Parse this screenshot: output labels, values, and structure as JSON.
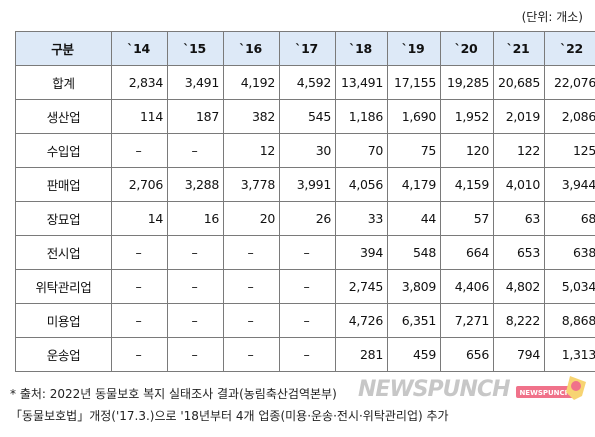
{
  "unit_label": "(단위: 개소)",
  "table": {
    "header": [
      "구분",
      "`14",
      "`15",
      "`16",
      "`17",
      "`18",
      "`19",
      "`20",
      "`21",
      "`22"
    ],
    "rows": [
      {
        "label": "합계",
        "cells": [
          "2,834",
          "3,491",
          "4,192",
          "4,592",
          "13,491",
          "17,155",
          "19,285",
          "20,685",
          "22,076"
        ]
      },
      {
        "label": "생산업",
        "cells": [
          "114",
          "187",
          "382",
          "545",
          "1,186",
          "1,690",
          "1,952",
          "2,019",
          "2,086"
        ]
      },
      {
        "label": "수입업",
        "cells": [
          "–",
          "–",
          "12",
          "30",
          "70",
          "75",
          "120",
          "122",
          "125"
        ]
      },
      {
        "label": "판매업",
        "cells": [
          "2,706",
          "3,288",
          "3,778",
          "3,991",
          "4,056",
          "4,179",
          "4,159",
          "4,010",
          "3,944"
        ]
      },
      {
        "label": "장묘업",
        "cells": [
          "14",
          "16",
          "20",
          "26",
          "33",
          "44",
          "57",
          "63",
          "68"
        ]
      },
      {
        "label": "전시업",
        "cells": [
          "–",
          "–",
          "–",
          "–",
          "394",
          "548",
          "664",
          "653",
          "638"
        ]
      },
      {
        "label": "위탁관리업",
        "cells": [
          "–",
          "–",
          "–",
          "–",
          "2,745",
          "3,809",
          "4,406",
          "4,802",
          "5,034"
        ]
      },
      {
        "label": "미용업",
        "cells": [
          "–",
          "–",
          "–",
          "–",
          "4,726",
          "6,351",
          "7,271",
          "8,222",
          "8,868"
        ]
      },
      {
        "label": "운송업",
        "cells": [
          "–",
          "–",
          "–",
          "–",
          "281",
          "459",
          "656",
          "794",
          "1,313"
        ]
      }
    ]
  },
  "notes": [
    "* 출처: 2022년 동물보호 복지 실태조사 결과(농림축산검역본부)",
    "「동물보호법」개정('17.3.)으로 '18년부터 4개 업종(미용·운송·전시·위탁관리업) 추가"
  ],
  "watermark": {
    "text": "NEWSPUNCH",
    "badge": "NEWSPUNCH",
    "accent_color": "#e4002b",
    "mascot_icon": "fist-icon"
  }
}
